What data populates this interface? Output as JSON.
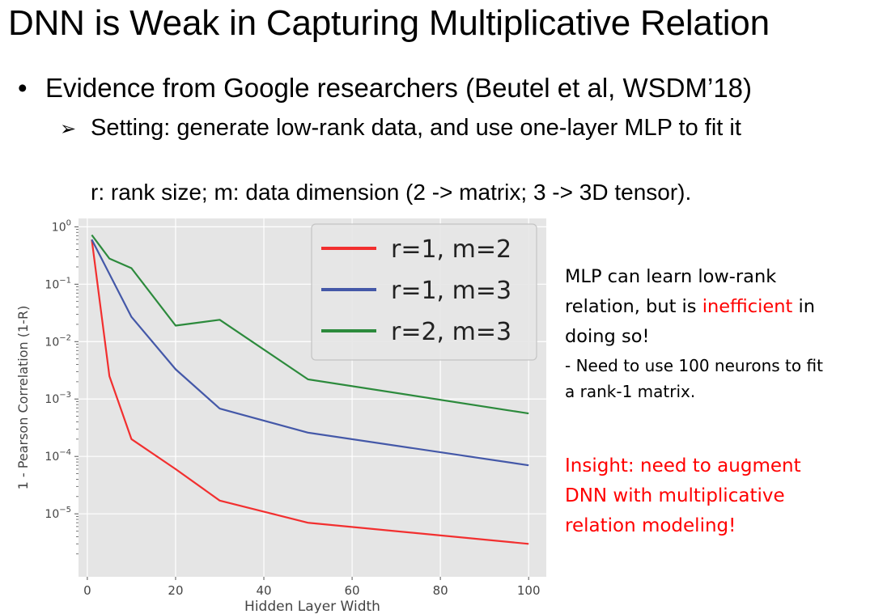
{
  "slide": {
    "title": "DNN is Weak in Capturing Multiplicative Relation",
    "bullet_mark": "•",
    "bullet": "Evidence from Google researchers (Beutel et al, WSDM’18)",
    "sub_mark": "➢",
    "sub_bullet": "Setting: generate low-rank data, and use one-layer MLP to fit it",
    "note": "r: rank size;  m: data dimension (2 -> matrix; 3 -> 3D tensor)."
  },
  "side_text": {
    "line1": "MLP can learn low-rank",
    "line2_a": "relation, but is ",
    "line2_red": "inefficient",
    "line2_b": " in",
    "line3": "doing so!",
    "line4": "- Need to use 100 neurons to fit",
    "line5": "a rank-1 matrix.",
    "insight1": "Insight: need to augment",
    "insight2": "DNN with multiplicative",
    "insight3": "relation modeling!"
  },
  "colors": {
    "accent_red": "#ff0000",
    "plot_bg": "#e5e5e5"
  },
  "chart_data": {
    "type": "line",
    "xlabel": "Hidden Layer Width",
    "ylabel": "1 - Pearson Correlation (1-R)",
    "y_scale": "log",
    "xlim": [
      -2,
      104
    ],
    "ylim": [
      8e-07,
      1.4
    ],
    "x_ticks": [
      0,
      20,
      40,
      60,
      80,
      100
    ],
    "y_ticks": [
      {
        "value": 1,
        "base": "10",
        "exp": "0"
      },
      {
        "value": 0.1,
        "base": "10",
        "exp": "−1"
      },
      {
        "value": 0.01,
        "base": "10",
        "exp": "−2"
      },
      {
        "value": 0.001,
        "base": "10",
        "exp": "−3"
      },
      {
        "value": 0.0001,
        "base": "10",
        "exp": "−4"
      },
      {
        "value": 1e-05,
        "base": "10",
        "exp": "−5"
      }
    ],
    "grid": true,
    "legend_position": "top-right",
    "series": [
      {
        "name": "r=1, m=2",
        "color": "#f22f2f",
        "x": [
          1,
          5,
          10,
          20,
          30,
          50,
          100
        ],
        "y": [
          0.6,
          0.0025,
          0.0002,
          6e-05,
          1.7e-05,
          7e-06,
          3e-06
        ]
      },
      {
        "name": "r=1, m=3",
        "color": "#4458a8",
        "x": [
          1,
          10,
          20,
          30,
          50,
          100
        ],
        "y": [
          0.6,
          0.027,
          0.0033,
          0.00068,
          0.00026,
          7e-05
        ]
      },
      {
        "name": "r=2, m=3",
        "color": "#2c8a3c",
        "x": [
          1,
          5,
          10,
          20,
          30,
          50,
          100
        ],
        "y": [
          0.72,
          0.28,
          0.19,
          0.019,
          0.024,
          0.0022,
          0.00056
        ]
      }
    ]
  }
}
